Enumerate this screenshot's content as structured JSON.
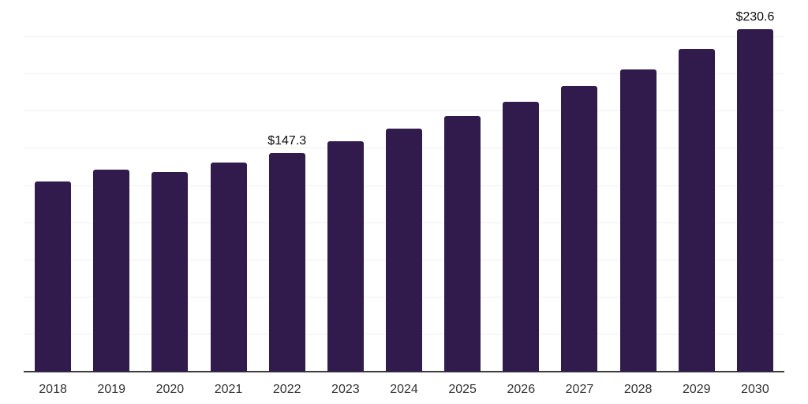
{
  "chart_data": {
    "type": "bar",
    "title": "",
    "xlabel": "",
    "ylabel": "",
    "categories": [
      "2018",
      "2019",
      "2020",
      "2021",
      "2022",
      "2023",
      "2024",
      "2025",
      "2026",
      "2027",
      "2028",
      "2029",
      "2030"
    ],
    "values": [
      127.9,
      136.0,
      134.2,
      140.7,
      147.3,
      155.0,
      163.3,
      172.0,
      181.6,
      192.3,
      203.5,
      216.9,
      230.6
    ],
    "data_labels": [
      {
        "category": "2022",
        "text": "$147.3"
      },
      {
        "category": "2030",
        "text": "$230.6"
      }
    ],
    "ylim": [
      0,
      250
    ],
    "gridline_step": 25,
    "grid": "horizontal-only",
    "legend": "none",
    "y_tick_labels": "none",
    "colors": {
      "bar": "#311b4d",
      "gridline": "#f0f0f0",
      "axis": "#3d3d3d",
      "tick_label": "#333333",
      "data_label": "#0d0d0d",
      "background": "#ffffff"
    }
  }
}
